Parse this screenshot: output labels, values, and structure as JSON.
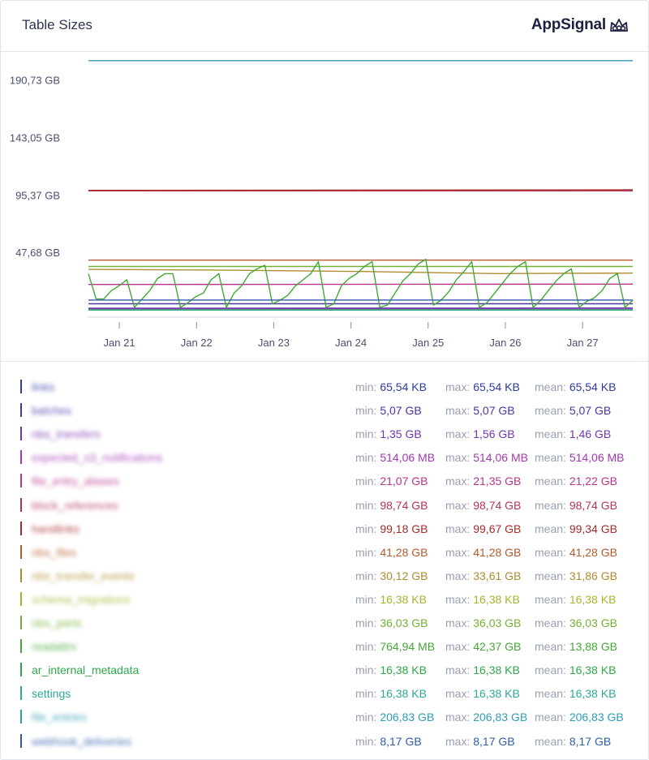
{
  "header": {
    "title": "Table Sizes",
    "brand": "AppSignal"
  },
  "chart_data": {
    "type": "line",
    "x_ticks": [
      "Jan 21",
      "Jan 22",
      "Jan 23",
      "Jan 24",
      "Jan 25",
      "Jan 26",
      "Jan 27"
    ],
    "y_ticks": [
      "190,73 GB",
      "143,05 GB",
      "95,37 GB",
      "47,68 GB"
    ],
    "y_tick_values": [
      190.73,
      143.05,
      95.37,
      47.68
    ],
    "x_range": [
      20.6,
      27.65
    ],
    "ylim": [
      0,
      204
    ],
    "grid": false,
    "series": [
      {
        "name": "links",
        "color": "#2e3d9e",
        "values": [
          6.5e-05,
          6.5e-05
        ]
      },
      {
        "name": "batches",
        "color": "#4a34a6",
        "values": [
          5.07,
          5.07
        ]
      },
      {
        "name": "nbs_transfers",
        "color": "#7535ae",
        "values": [
          1.35,
          1.56
        ]
      },
      {
        "name": "expected_s3_notifications",
        "color": "#a337b5",
        "values": [
          0.514,
          0.514
        ]
      },
      {
        "name": "file_entry_aliases",
        "color": "#b8358b",
        "values": [
          21.07,
          21.35
        ]
      },
      {
        "name": "block_references",
        "color": "#b43356",
        "values": [
          98.74,
          98.74
        ]
      },
      {
        "name": "handlinks",
        "color": "#a82a2a",
        "values": [
          99.18,
          99.67
        ]
      },
      {
        "name": "nbs_files",
        "color": "#b45a2c",
        "values": [
          41.28,
          41.28
        ]
      },
      {
        "name": "nbs_transfer_events",
        "color": "#ae8c2e",
        "values": [
          33.61,
          32.9,
          31.86,
          30.12,
          30.5
        ]
      },
      {
        "name": "schema_migrations",
        "color": "#a6b42e",
        "values": [
          0.016,
          0.016
        ]
      },
      {
        "name": "nbs_parts",
        "color": "#76b035",
        "values": [
          36.03,
          36.03
        ]
      },
      {
        "name": "readattrs",
        "color": "#43a835",
        "values": [
          30,
          9,
          9,
          16,
          20,
          25,
          2,
          9,
          16,
          26,
          30,
          30,
          2,
          6,
          11,
          14,
          25,
          30,
          2,
          14,
          20,
          30,
          34,
          37,
          5,
          8,
          12,
          20,
          25,
          30,
          40,
          2,
          5,
          20,
          26,
          30,
          36,
          40,
          2,
          4,
          14,
          24,
          30,
          38,
          42,
          4,
          8,
          15,
          25,
          32,
          40,
          2,
          6,
          14,
          22,
          30,
          36,
          40,
          2,
          8,
          16,
          24,
          30,
          34,
          2,
          7,
          10,
          16,
          26,
          30,
          2,
          8
        ]
      },
      {
        "name": "ar_internal_metadata",
        "color": "#2ea84a",
        "values": [
          0.016,
          0.016
        ]
      },
      {
        "name": "settings",
        "color": "#2ea89a",
        "values": [
          0.016,
          0.016
        ]
      },
      {
        "name": "file_entries",
        "color": "#2e9eb4",
        "values": [
          206.83,
          206.83
        ]
      },
      {
        "name": "webhook_deliveries",
        "color": "#2e5ea8",
        "values": [
          8.17,
          8.17
        ]
      }
    ]
  },
  "legend": [
    {
      "name": "links",
      "color": "#2e3d9e",
      "blurred": true,
      "min": "65,54 KB",
      "max": "65,54 KB",
      "mean": "65,54 KB"
    },
    {
      "name": "batches",
      "color": "#4a34a6",
      "blurred": true,
      "min": "5,07 GB",
      "max": "5,07 GB",
      "mean": "5,07 GB"
    },
    {
      "name": "nbs_transfers",
      "color": "#7535ae",
      "blurred": true,
      "min": "1,35 GB",
      "max": "1,56 GB",
      "mean": "1,46 GB"
    },
    {
      "name": "expected_s3_notifications",
      "color": "#a337b5",
      "blurred": true,
      "min": "514,06 MB",
      "max": "514,06 MB",
      "mean": "514,06 MB"
    },
    {
      "name": "file_entry_aliases",
      "color": "#b8358b",
      "blurred": true,
      "min": "21,07 GB",
      "max": "21,35 GB",
      "mean": "21,22 GB"
    },
    {
      "name": "block_references",
      "color": "#b43356",
      "blurred": true,
      "min": "98,74 GB",
      "max": "98,74 GB",
      "mean": "98,74 GB"
    },
    {
      "name": "handlinks",
      "color": "#a82a2a",
      "blurred": true,
      "min": "99,18 GB",
      "max": "99,67 GB",
      "mean": "99,34 GB"
    },
    {
      "name": "nbs_files",
      "color": "#b45a2c",
      "blurred": true,
      "min": "41,28 GB",
      "max": "41,28 GB",
      "mean": "41,28 GB"
    },
    {
      "name": "nbs_transfer_events",
      "color": "#ae8c2e",
      "blurred": true,
      "min": "30,12 GB",
      "max": "33,61 GB",
      "mean": "31,86 GB"
    },
    {
      "name": "schema_migrations",
      "color": "#a6b42e",
      "blurred": true,
      "min": "16,38 KB",
      "max": "16,38 KB",
      "mean": "16,38 KB"
    },
    {
      "name": "nbs_parts",
      "color": "#76b035",
      "blurred": true,
      "min": "36,03 GB",
      "max": "36,03 GB",
      "mean": "36,03 GB"
    },
    {
      "name": "readattrs",
      "color": "#43a835",
      "blurred": true,
      "min": "764,94 MB",
      "max": "42,37 GB",
      "mean": "13,88 GB"
    },
    {
      "name": "ar_internal_metadata",
      "color": "#2ea84a",
      "blurred": false,
      "min": "16,38 KB",
      "max": "16,38 KB",
      "mean": "16,38 KB"
    },
    {
      "name": "settings",
      "color": "#2ea89a",
      "blurred": false,
      "min": "16,38 KB",
      "max": "16,38 KB",
      "mean": "16,38 KB"
    },
    {
      "name": "file_entries",
      "color": "#2e9eb4",
      "blurred": true,
      "min": "206,83 GB",
      "max": "206,83 GB",
      "mean": "206,83 GB"
    },
    {
      "name": "webhook_deliveries",
      "color": "#2e5ea8",
      "blurred": true,
      "min": "8,17 GB",
      "max": "8,17 GB",
      "mean": "8,17 GB"
    }
  ],
  "labels": {
    "min": "min:",
    "max": "max:",
    "mean": "mean:"
  }
}
